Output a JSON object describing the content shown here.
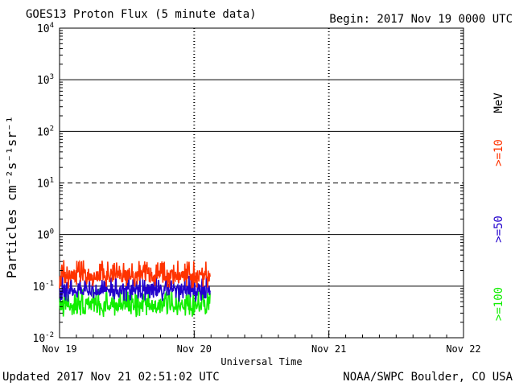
{
  "header": {
    "title": "GOES13 Proton Flux (5 minute data)",
    "begin": "Begin: 2017 Nov 19 0000 UTC"
  },
  "footer": {
    "updated": "Updated 2017 Nov 21 02:51:02 UTC",
    "credit": "NOAA/SWPC Boulder, CO USA"
  },
  "chart_data": {
    "type": "line",
    "title": "GOES13 Proton Flux (5 minute data)",
    "xlabel": "Universal Time",
    "ylabel": "Particles cm⁻²s⁻¹sr⁻¹",
    "yscale": "log",
    "ylim": [
      0.01,
      10000
    ],
    "y_ticks": [
      {
        "base": "10",
        "exp": "-2"
      },
      {
        "base": "10",
        "exp": "-1"
      },
      {
        "base": "10",
        "exp": "0"
      },
      {
        "base": "10",
        "exp": "1"
      },
      {
        "base": "10",
        "exp": "2"
      },
      {
        "base": "10",
        "exp": "3"
      },
      {
        "base": "10",
        "exp": "4"
      }
    ],
    "x_ticks": [
      "Nov 19",
      "Nov 20",
      "Nov 21",
      "Nov 22"
    ],
    "xlim_hours": [
      0,
      72
    ],
    "data_end_hours": 26.85,
    "threshold_lines": [
      {
        "value": 10,
        "style": "dashed"
      }
    ],
    "units_label": "MeV",
    "series": [
      {
        "name": ">=10",
        "color": "#ff3300",
        "base": 0.16,
        "range": [
          0.09,
          0.32
        ]
      },
      {
        "name": ">=50",
        "color": "#2200cc",
        "base": 0.085,
        "range": [
          0.05,
          0.16
        ]
      },
      {
        "name": ">=100",
        "color": "#11ee00",
        "base": 0.045,
        "range": [
          0.025,
          0.09
        ]
      }
    ]
  }
}
